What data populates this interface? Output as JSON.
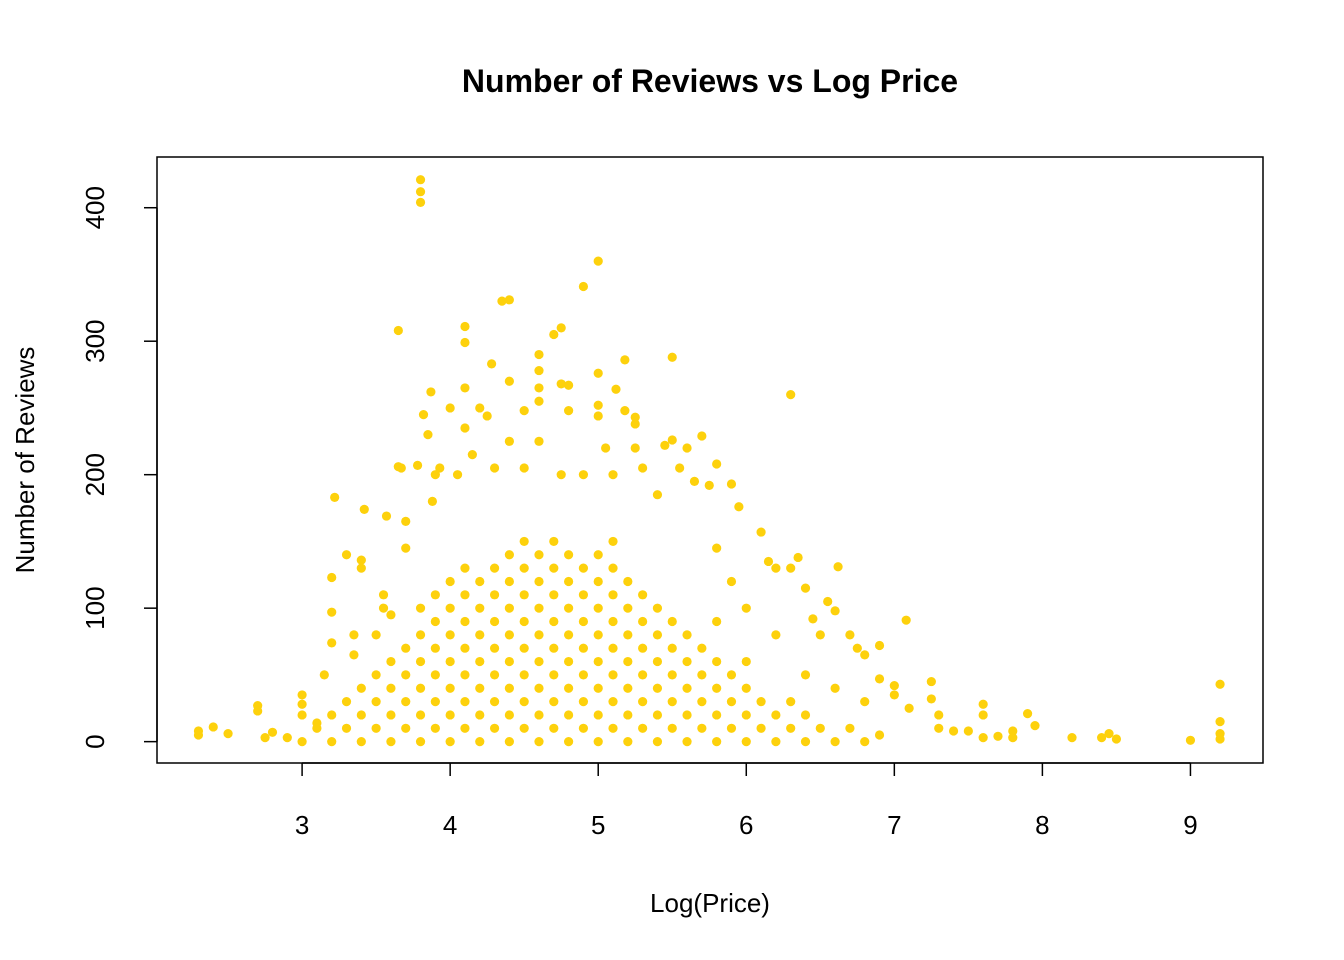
{
  "chart_data": {
    "type": "scatter",
    "title": "Number of Reviews vs Log Price",
    "xlabel": "Log(Price)",
    "ylabel": "Number of Reviews",
    "xlim": [
      2.02,
      9.49
    ],
    "ylim": [
      -16,
      438
    ],
    "xticks": [
      3,
      4,
      5,
      6,
      7,
      8,
      9
    ],
    "yticks": [
      0,
      100,
      200,
      300,
      400
    ],
    "grid": false,
    "series": [
      {
        "color": "#FDD10C",
        "x": [
          3.0,
          3.2,
          3.2,
          3.4,
          3.4,
          3.4,
          3.6,
          3.6,
          3.6,
          3.6,
          3.8,
          3.8,
          3.8,
          3.8,
          3.8,
          3.8,
          4.0,
          4.0,
          4.0,
          4.0,
          4.0,
          4.0,
          4.0,
          4.2,
          4.2,
          4.2,
          4.2,
          4.2,
          4.2,
          4.2,
          4.4,
          4.4,
          4.4,
          4.4,
          4.4,
          4.4,
          4.4,
          4.4,
          4.6,
          4.6,
          4.6,
          4.6,
          4.6,
          4.6,
          4.6,
          4.6,
          4.8,
          4.8,
          4.8,
          4.8,
          4.8,
          4.8,
          4.8,
          4.8,
          5.0,
          5.0,
          5.0,
          5.0,
          5.0,
          5.0,
          5.0,
          5.0,
          5.2,
          5.2,
          5.2,
          5.2,
          5.2,
          5.2,
          5.2,
          5.4,
          5.4,
          5.4,
          5.4,
          5.4,
          5.4,
          5.6,
          5.6,
          5.6,
          5.6,
          5.6,
          5.8,
          5.8,
          5.8,
          5.8,
          6.0,
          6.0,
          6.0,
          6.2,
          6.2,
          6.4,
          6.4,
          6.6,
          6.8,
          3.1,
          3.3,
          3.3,
          3.5,
          3.5,
          3.5,
          3.7,
          3.7,
          3.7,
          3.7,
          3.9,
          3.9,
          3.9,
          3.9,
          3.9,
          3.9,
          4.1,
          4.1,
          4.1,
          4.1,
          4.1,
          4.1,
          4.1,
          4.3,
          4.3,
          4.3,
          4.3,
          4.3,
          4.3,
          4.3,
          4.5,
          4.5,
          4.5,
          4.5,
          4.5,
          4.5,
          4.5,
          4.5,
          4.7,
          4.7,
          4.7,
          4.7,
          4.7,
          4.7,
          4.7,
          4.7,
          4.9,
          4.9,
          4.9,
          4.9,
          4.9,
          4.9,
          4.9,
          5.1,
          5.1,
          5.1,
          5.1,
          5.1,
          5.1,
          5.1,
          5.1,
          5.3,
          5.3,
          5.3,
          5.3,
          5.3,
          5.3,
          5.5,
          5.5,
          5.5,
          5.5,
          5.5,
          5.7,
          5.7,
          5.7,
          5.7,
          5.9,
          5.9,
          5.9,
          6.1,
          6.1,
          6.3,
          6.3,
          6.5,
          6.7,
          6.9,
          2.3,
          2.3,
          2.4,
          2.5,
          2.7,
          2.7,
          2.75,
          2.8,
          2.9,
          3.0,
          3.0,
          3.0,
          3.1,
          3.15,
          3.2,
          3.2,
          3.2,
          3.22,
          3.3,
          3.35,
          3.35,
          3.4,
          3.4,
          3.42,
          3.55,
          3.55,
          3.57,
          3.65,
          3.65,
          3.67,
          3.7,
          3.7,
          3.78,
          3.8,
          3.8,
          3.8,
          3.82,
          3.85,
          3.87,
          3.9,
          3.88,
          3.93,
          4.0,
          4.05,
          4.1,
          4.1,
          4.1,
          4.1,
          4.15,
          4.2,
          4.25,
          4.28,
          4.3,
          4.35,
          4.4,
          4.4,
          4.4,
          4.5,
          4.5,
          4.6,
          4.6,
          4.6,
          4.6,
          4.6,
          4.7,
          4.75,
          4.75,
          4.8,
          4.8,
          4.75,
          4.9,
          4.9,
          5.0,
          5.0,
          5.0,
          5.0,
          5.05,
          5.1,
          5.12,
          5.18,
          5.18,
          5.25,
          5.25,
          5.25,
          5.3,
          5.4,
          5.45,
          5.5,
          5.5,
          5.55,
          5.6,
          5.65,
          5.7,
          5.75,
          5.8,
          5.8,
          5.9,
          5.95,
          5.9,
          6.1,
          6.15,
          6.2,
          6.3,
          6.3,
          6.35,
          6.4,
          6.45,
          6.5,
          6.55,
          6.6,
          6.62,
          6.7,
          6.75,
          6.8,
          6.9,
          6.9,
          7.0,
          7.0,
          7.08,
          7.1,
          7.25,
          7.25,
          7.3,
          7.3,
          7.4,
          7.5,
          7.6,
          7.6,
          7.6,
          7.7,
          7.8,
          7.8,
          7.9,
          7.95,
          8.2,
          8.4,
          8.45,
          8.5,
          9.0,
          9.2,
          9.2,
          9.2,
          9.2,
          6.0,
          6.2,
          6.4,
          6.6,
          6.8,
          5.8,
          6.0,
          3.5,
          3.6
        ],
        "values": [
          0,
          0,
          20,
          0,
          20,
          40,
          0,
          20,
          40,
          60,
          0,
          20,
          40,
          60,
          80,
          100,
          0,
          20,
          40,
          60,
          80,
          100,
          120,
          0,
          20,
          40,
          60,
          80,
          100,
          120,
          0,
          20,
          40,
          60,
          80,
          100,
          120,
          140,
          0,
          20,
          40,
          60,
          80,
          100,
          120,
          140,
          0,
          20,
          40,
          60,
          80,
          100,
          120,
          140,
          0,
          20,
          40,
          60,
          80,
          100,
          120,
          140,
          0,
          20,
          40,
          60,
          80,
          100,
          120,
          0,
          20,
          40,
          60,
          80,
          100,
          0,
          20,
          40,
          60,
          80,
          0,
          20,
          40,
          60,
          0,
          20,
          40,
          0,
          20,
          0,
          20,
          0,
          0,
          10,
          10,
          30,
          10,
          30,
          50,
          10,
          30,
          50,
          70,
          10,
          30,
          50,
          70,
          90,
          110,
          10,
          30,
          50,
          70,
          90,
          110,
          130,
          10,
          30,
          50,
          70,
          90,
          110,
          130,
          10,
          30,
          50,
          70,
          90,
          110,
          130,
          150,
          10,
          30,
          50,
          70,
          90,
          110,
          130,
          150,
          10,
          30,
          50,
          70,
          90,
          110,
          130,
          10,
          30,
          50,
          70,
          90,
          110,
          130,
          150,
          10,
          30,
          50,
          70,
          90,
          110,
          10,
          30,
          50,
          70,
          90,
          10,
          30,
          50,
          70,
          10,
          30,
          50,
          10,
          30,
          10,
          30,
          10,
          10,
          5,
          8,
          5,
          11,
          6,
          27,
          23,
          3,
          7,
          3,
          35,
          28,
          20,
          14,
          50,
          74,
          97,
          123,
          183,
          140,
          80,
          65,
          130,
          136,
          174,
          100,
          110,
          169,
          308,
          206,
          205,
          165,
          145,
          207,
          421,
          412,
          404,
          245,
          230,
          262,
          200,
          180,
          205,
          250,
          200,
          311,
          299,
          265,
          235,
          215,
          250,
          244,
          283,
          205,
          330,
          331,
          270,
          225,
          248,
          205,
          290,
          278,
          265,
          255,
          225,
          305,
          310,
          268,
          267,
          248,
          200,
          341,
          200,
          360,
          276,
          252,
          244,
          220,
          200,
          264,
          286,
          248,
          243,
          238,
          220,
          205,
          185,
          222,
          288,
          226,
          205,
          220,
          195,
          229,
          192,
          208,
          145,
          193,
          176,
          120,
          157,
          135,
          130,
          260,
          130,
          138,
          115,
          92,
          80,
          105,
          98,
          131,
          80,
          70,
          65,
          72,
          47,
          35,
          42,
          91,
          25,
          45,
          32,
          20,
          10,
          8,
          8,
          28,
          20,
          3,
          4,
          8,
          3,
          21,
          12,
          3,
          3,
          6,
          2,
          1,
          43,
          15,
          6,
          2,
          60,
          80,
          50,
          40,
          30,
          90,
          100,
          80,
          95
        ]
      }
    ]
  }
}
